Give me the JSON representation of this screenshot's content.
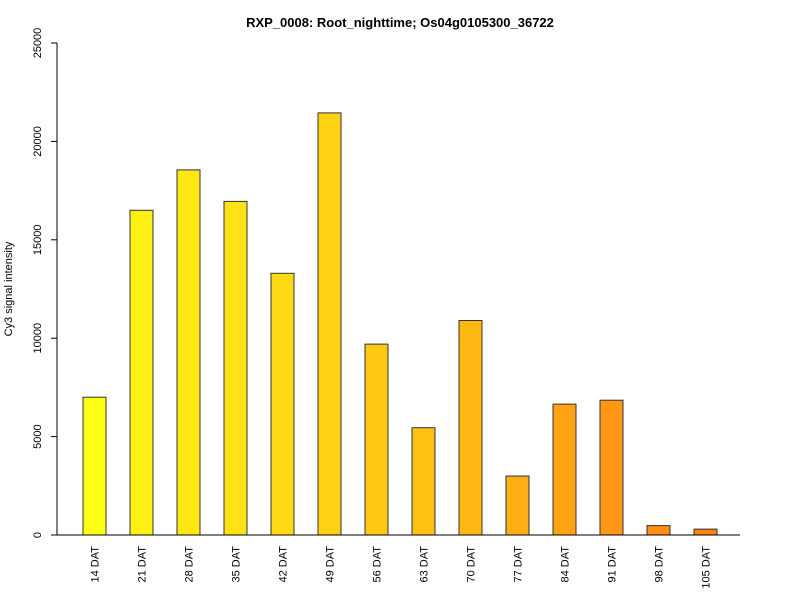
{
  "chart_data": {
    "type": "bar",
    "title": "RXP_0008: Root_nighttime; Os04g0105300_36722",
    "xlabel": "",
    "ylabel": "Cy3  signal intensity",
    "ylim": [
      0,
      25000
    ],
    "yticks": [
      0,
      5000,
      10000,
      15000,
      20000,
      25000
    ],
    "ytick_labels": [
      "0",
      "5000",
      "10000",
      "15000",
      "20000",
      "25000"
    ],
    "categories": [
      "14 DAT",
      "21 DAT",
      "28 DAT",
      "35 DAT",
      "42 DAT",
      "49 DAT",
      "56 DAT",
      "63 DAT",
      "70 DAT",
      "77 DAT",
      "84 DAT",
      "91 DAT",
      "98 DAT",
      "105 DAT"
    ],
    "values": [
      7000,
      16500,
      18550,
      16950,
      13300,
      21450,
      9700,
      5450,
      10900,
      3000,
      6650,
      6850,
      480,
      300
    ],
    "colors": [
      "#FFFF14",
      "#FFF014",
      "#FFE714",
      "#FFE114",
      "#FFD914",
      "#FFD114",
      "#FFC814",
      "#FFC014",
      "#FFB714",
      "#FFAE14",
      "#FFA214",
      "#FF9614",
      "#FF8E14",
      "#FF8214"
    ],
    "grid": false,
    "legend": "none"
  }
}
